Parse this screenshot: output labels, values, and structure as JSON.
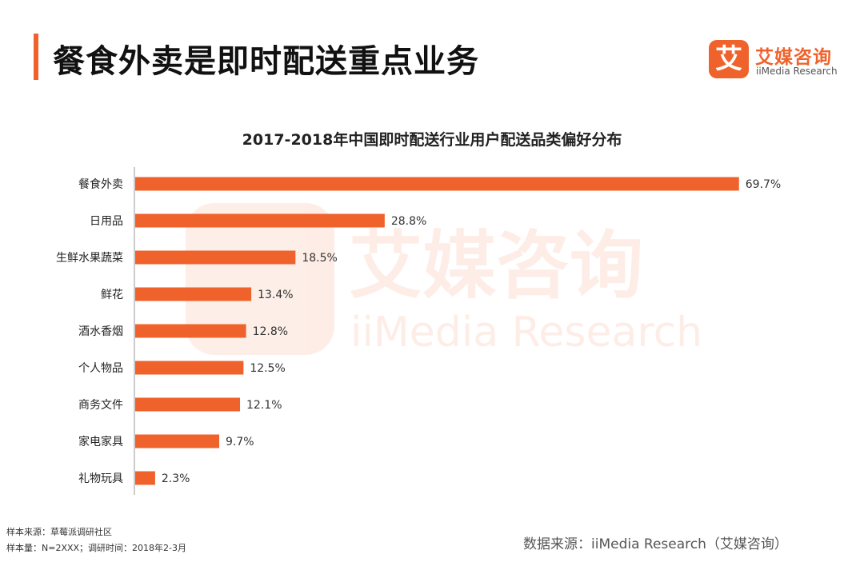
{
  "header": {
    "title": "餐食外卖是即时配送重点业务"
  },
  "brand": {
    "logo_char": "艾",
    "name_cn": "艾媒咨询",
    "name_en": "iiMedia Research"
  },
  "watermark": {
    "cn": "艾媒咨询",
    "en": "iiMedia Research"
  },
  "colors": {
    "accent": "#f0622b",
    "bar": "#f0622b",
    "text": "#222222"
  },
  "chart_data": {
    "type": "bar",
    "orientation": "horizontal",
    "title": "2017-2018年中国即时配送行业用户配送品类偏好分布",
    "categories": [
      "餐食外卖",
      "日用品",
      "生鲜水果蔬菜",
      "鲜花",
      "酒水香烟",
      "个人物品",
      "商务文件",
      "家电家具",
      "礼物玩具"
    ],
    "values": [
      69.7,
      28.8,
      18.5,
      13.4,
      12.8,
      12.5,
      12.1,
      9.7,
      2.3
    ],
    "value_labels": [
      "69.7%",
      "28.8%",
      "18.5%",
      "13.4%",
      "12.8%",
      "12.5%",
      "12.1%",
      "9.7%",
      "2.3%"
    ],
    "unit": "%",
    "xlim": [
      0,
      70
    ],
    "grid": false,
    "legend": "none"
  },
  "footer": {
    "sample_source": "样本来源：草莓派调研社区",
    "sample_info": "样本量：N=2XXX；调研时间：2018年2-3月",
    "data_source": "数据来源：iiMedia Research（艾媒咨询）"
  }
}
